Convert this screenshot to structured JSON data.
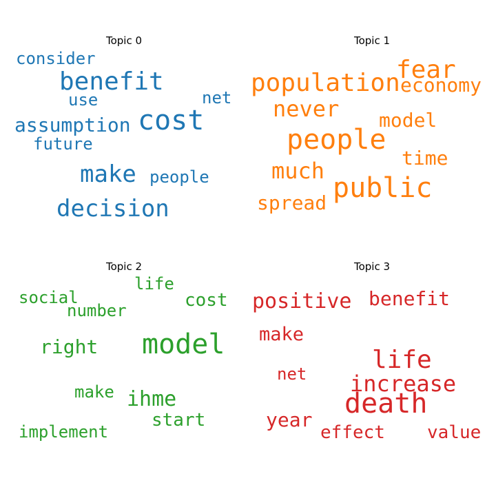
{
  "chart_data": {
    "type": "wordcloud",
    "topics": [
      {
        "title": "Topic 0",
        "color": "#1f77b4",
        "words": [
          {
            "text": "cost",
            "weight": 1.0
          },
          {
            "text": "benefit",
            "weight": 0.92
          },
          {
            "text": "decision",
            "weight": 0.82
          },
          {
            "text": "make",
            "weight": 0.8
          },
          {
            "text": "assumption",
            "weight": 0.6
          },
          {
            "text": "consider",
            "weight": 0.56
          },
          {
            "text": "net",
            "weight": 0.56
          },
          {
            "text": "future",
            "weight": 0.53
          },
          {
            "text": "use",
            "weight": 0.53
          },
          {
            "text": "people",
            "weight": 0.53
          }
        ]
      },
      {
        "title": "Topic 1",
        "color": "#ff7f0e",
        "words": [
          {
            "text": "people",
            "weight": 1.0
          },
          {
            "text": "public",
            "weight": 1.0
          },
          {
            "text": "population",
            "weight": 0.94
          },
          {
            "text": "fear",
            "weight": 0.94
          },
          {
            "text": "never",
            "weight": 0.87
          },
          {
            "text": "much",
            "weight": 0.87
          },
          {
            "text": "economy",
            "weight": 0.76
          },
          {
            "text": "model",
            "weight": 0.76
          },
          {
            "text": "time",
            "weight": 0.76
          },
          {
            "text": "spread",
            "weight": 0.71
          }
        ]
      },
      {
        "title": "Topic 2",
        "color": "#2ca02c",
        "words": [
          {
            "text": "model",
            "weight": 1.0
          },
          {
            "text": "ihme",
            "weight": 0.77
          },
          {
            "text": "right",
            "weight": 0.73
          },
          {
            "text": "cost",
            "weight": 0.7
          },
          {
            "text": "start",
            "weight": 0.7
          },
          {
            "text": "social",
            "weight": 0.63
          },
          {
            "text": "number",
            "weight": 0.63
          },
          {
            "text": "life",
            "weight": 0.63
          },
          {
            "text": "implement",
            "weight": 0.63
          },
          {
            "text": "make",
            "weight": 0.6
          }
        ]
      },
      {
        "title": "Topic 3",
        "color": "#d62728",
        "words": [
          {
            "text": "death",
            "weight": 1.0
          },
          {
            "text": "life",
            "weight": 0.92
          },
          {
            "text": "increase",
            "weight": 0.78
          },
          {
            "text": "positive",
            "weight": 0.73
          },
          {
            "text": "benefit",
            "weight": 0.7
          },
          {
            "text": "year",
            "weight": 0.7
          },
          {
            "text": "make",
            "weight": 0.68
          },
          {
            "text": "effect",
            "weight": 0.65
          },
          {
            "text": "value",
            "weight": 0.62
          },
          {
            "text": "net",
            "weight": 0.6
          }
        ]
      }
    ]
  }
}
